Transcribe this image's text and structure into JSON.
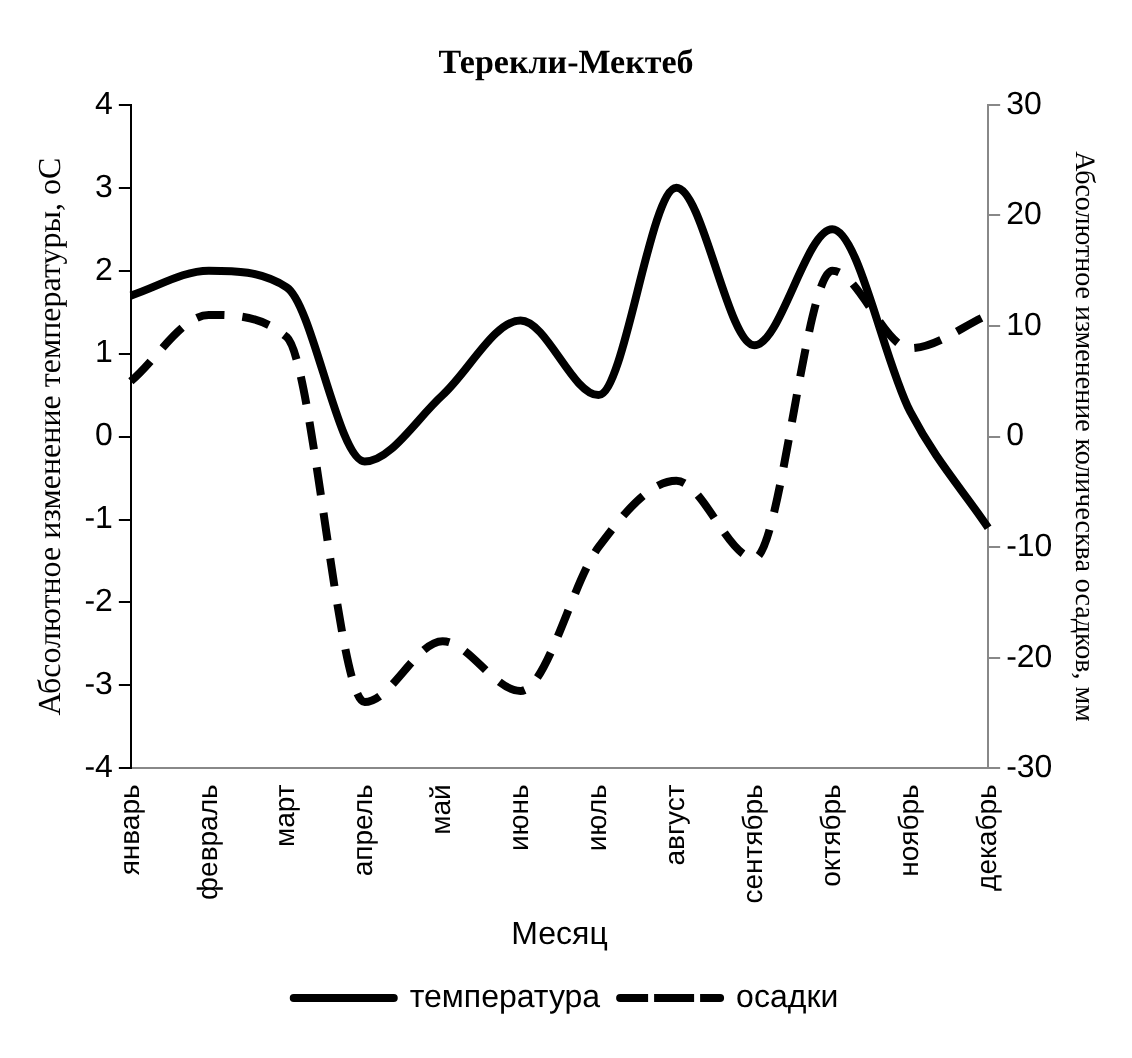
{
  "chart_data": {
    "type": "line",
    "title": "Терекли-Мектеб",
    "xlabel": "Месяц",
    "ylabel": "Абсолютное изменение температуры, оС",
    "y2label": "Абсолютное изменение колическва осадков, мм",
    "categories": [
      "январь",
      "февраль",
      "март",
      "апрель",
      "май",
      "июнь",
      "июль",
      "август",
      "сентябрь",
      "октябрь",
      "ноябрь",
      "декабрь"
    ],
    "series": [
      {
        "name": "температура",
        "color": "#000000",
        "line_style": "solid",
        "values": [
          1.7,
          2.0,
          1.8,
          -0.3,
          0.5,
          1.4,
          0.5,
          3.0,
          1.1,
          2.5,
          0.3,
          -1.1
        ]
      },
      {
        "name": "осадки",
        "color": "#000000",
        "line_style": "dashed",
        "axis": "y2",
        "values": [
          5,
          11,
          9,
          -24,
          -18.5,
          -23,
          -10,
          -4,
          -11,
          15,
          8,
          11
        ]
      }
    ],
    "ylim": [
      -4,
      4
    ],
    "yticks": [
      -4,
      -3,
      -2,
      -1,
      0,
      1,
      2,
      3,
      4
    ],
    "y2lim": [
      -30,
      30
    ],
    "y2ticks": [
      -30,
      -20,
      -10,
      0,
      10,
      20,
      30
    ],
    "grid": false,
    "legend": "bottom",
    "marker": "none"
  }
}
